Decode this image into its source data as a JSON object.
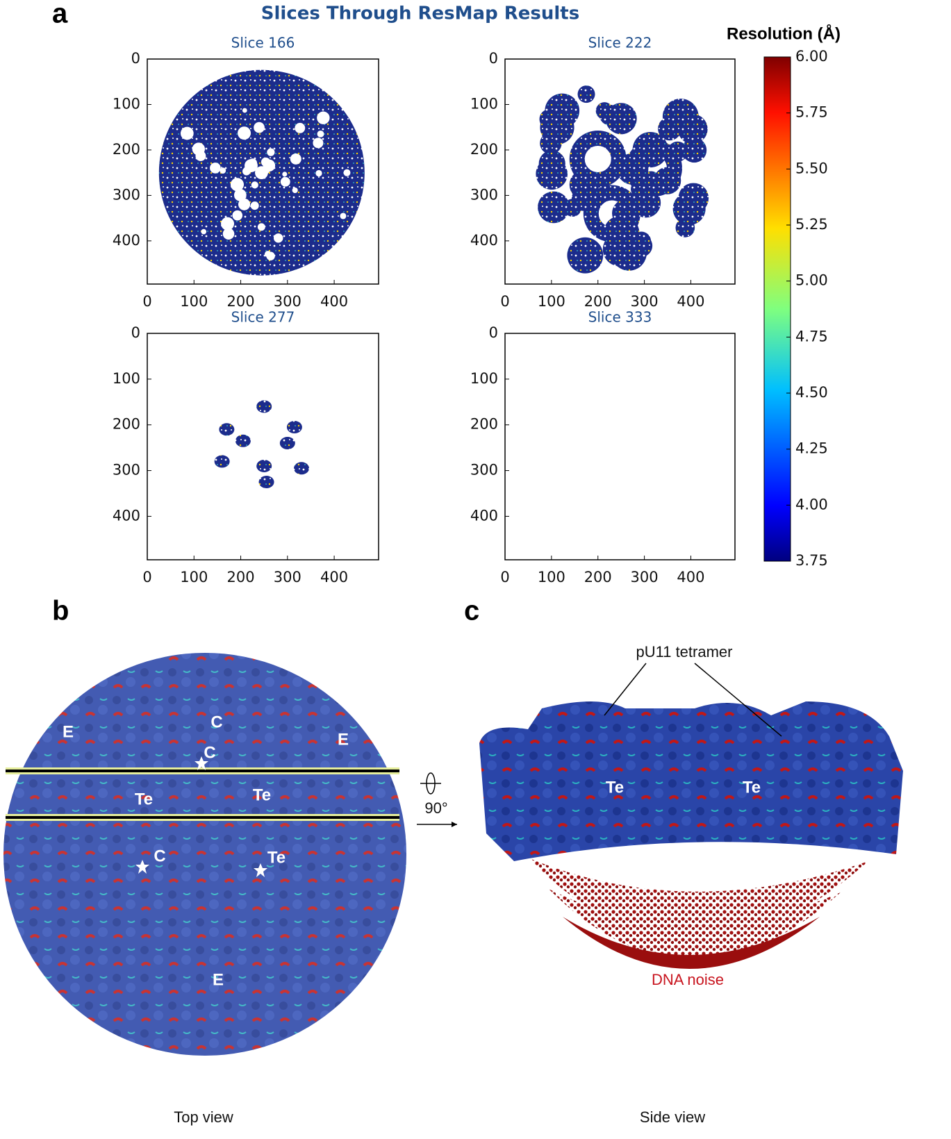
{
  "panel_labels": [
    "a",
    "b",
    "c"
  ],
  "panel_a": {
    "title": "Slices Through ResMap Results",
    "slices": [
      {
        "title": "Slice 166"
      },
      {
        "title": "Slice 222"
      },
      {
        "title": "Slice 277"
      },
      {
        "title": "Slice 333"
      }
    ],
    "xlim": [
      0,
      495
    ],
    "ylim": [
      0,
      495
    ],
    "xticks": [
      0,
      100,
      200,
      300,
      400
    ],
    "yticks": [
      0,
      100,
      200,
      300,
      400
    ],
    "colorbar": {
      "title": "Resolution (Å)",
      "lim": [
        3.75,
        6.0
      ],
      "ticks": [
        3.75,
        {
          "value": 4.0,
          "label": "4.00"
        },
        4.25,
        {
          "value": 4.5,
          "label": "4.50"
        },
        4.75,
        {
          "value": 5.0,
          "label": "5.00"
        },
        5.25,
        {
          "value": 5.5,
          "label": "5.50"
        },
        5.75,
        {
          "value": 6.0,
          "label": "6.00"
        }
      ]
    }
  },
  "panel_b": {
    "labels": [
      "E",
      "C",
      "E",
      "Te",
      "Te",
      "C",
      "C",
      "Te",
      "E"
    ],
    "caption": "Top view"
  },
  "panel_c": {
    "rotation": "90°",
    "annotation": "pU11 tetramer",
    "labels": [
      "Te",
      "Te"
    ],
    "noise_label": "DNA noise",
    "caption": "Side view"
  }
}
